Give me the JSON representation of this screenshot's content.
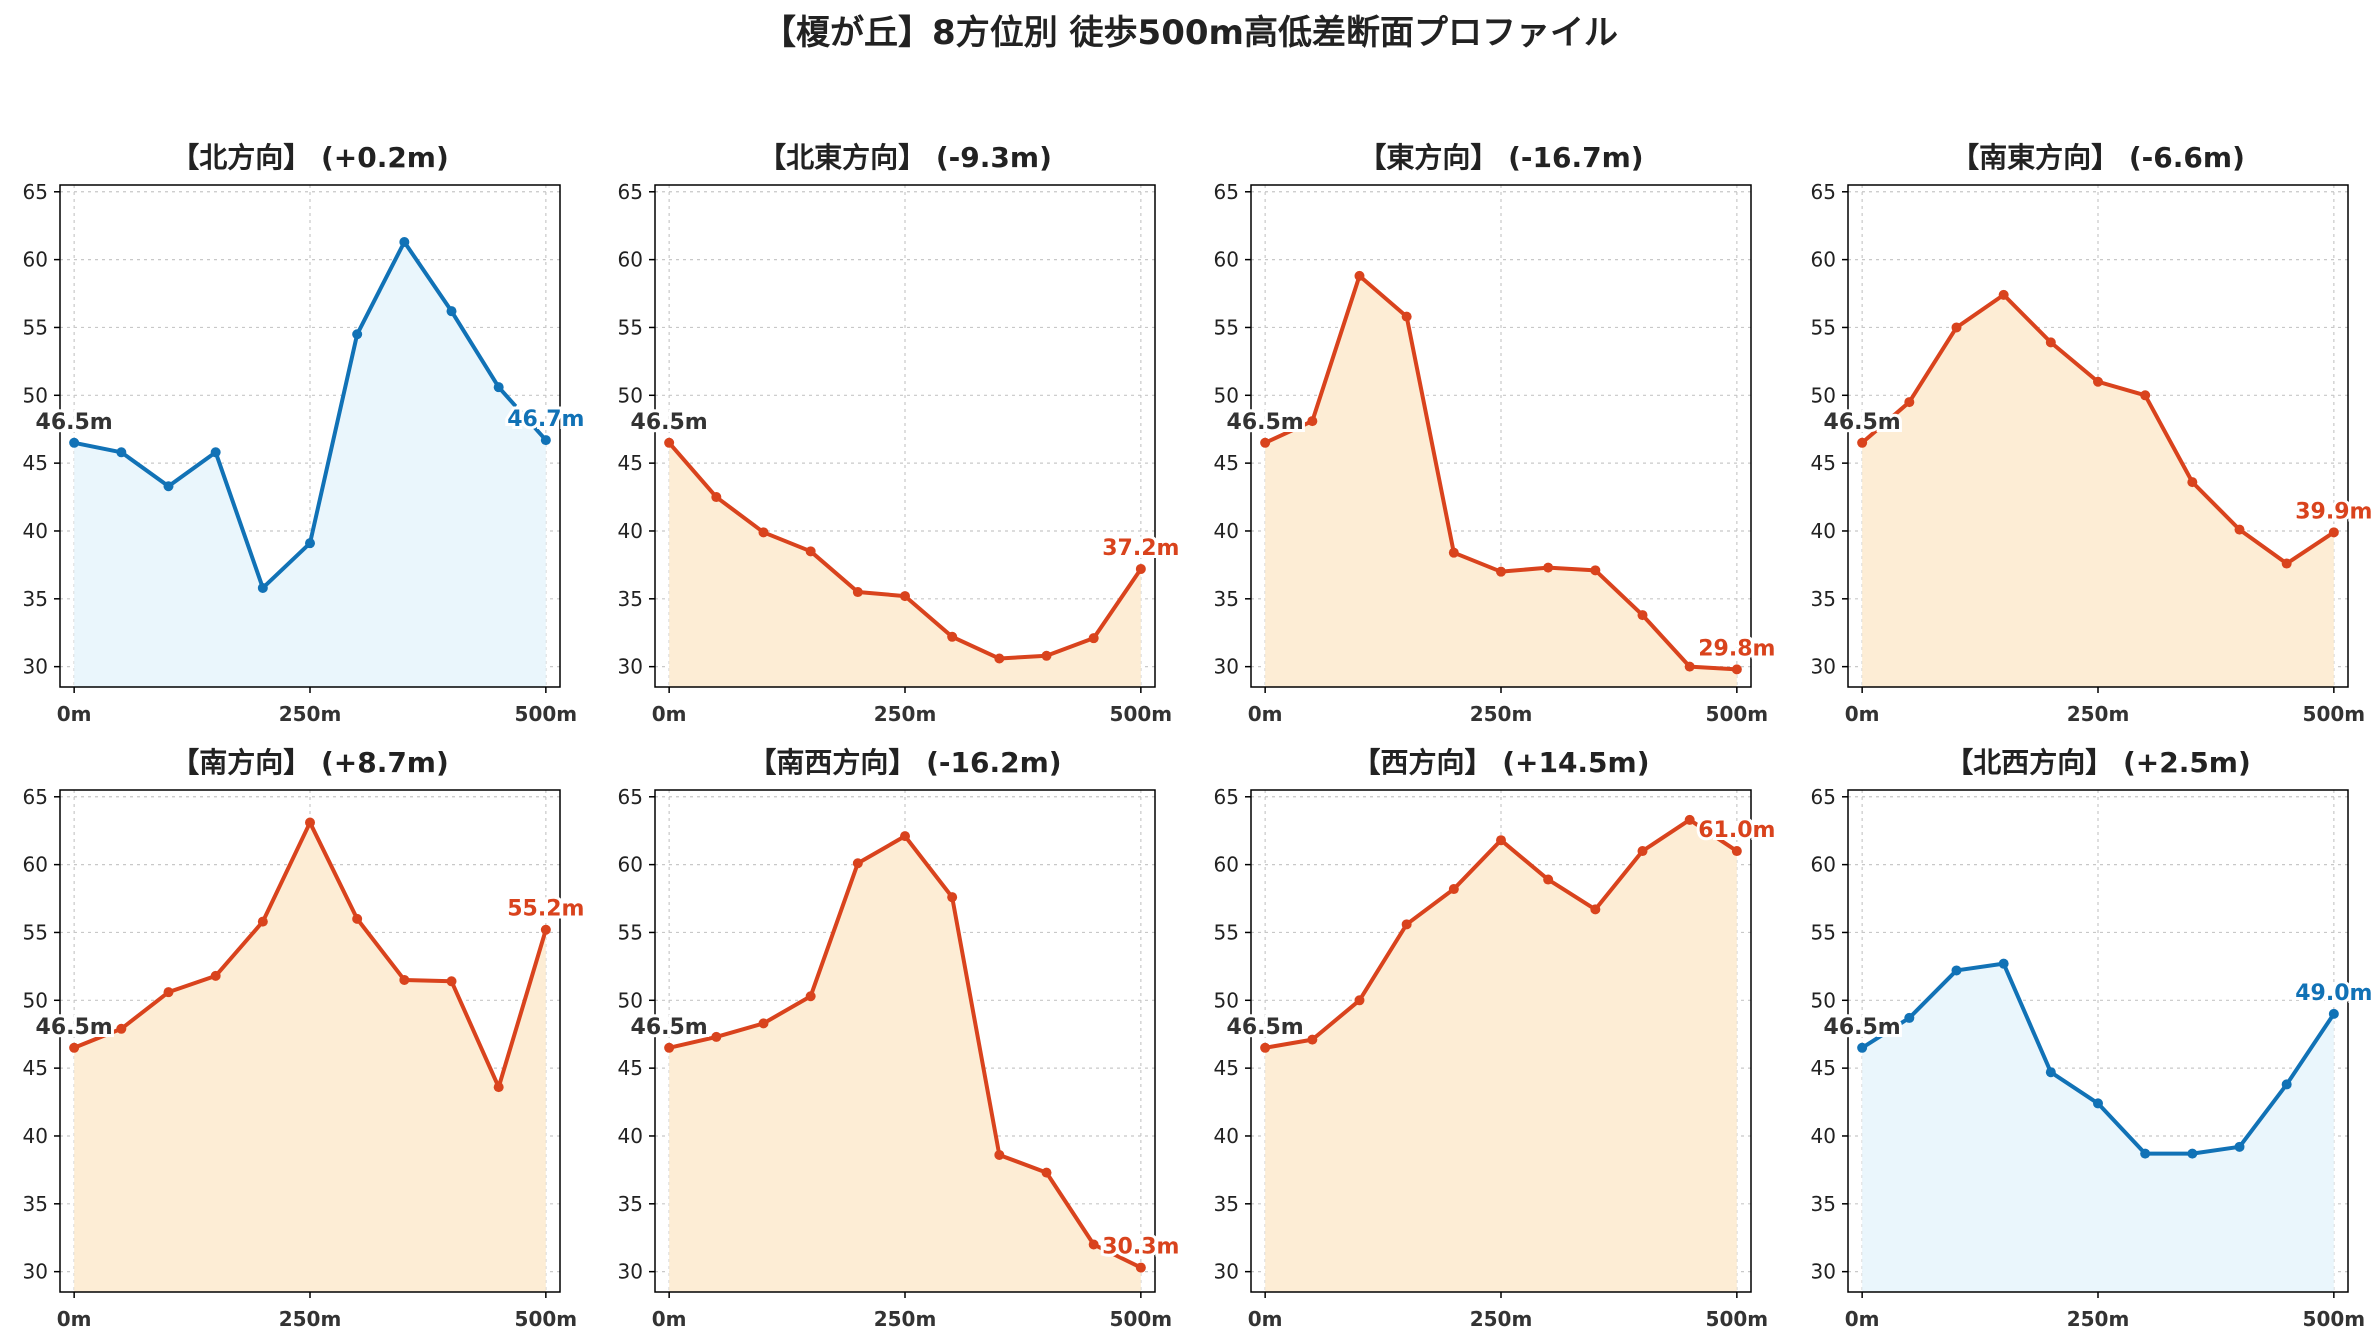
{
  "figure": {
    "title": "【榎が丘】8方位別 徒歩500m高低差断面プロファイル"
  },
  "colors": {
    "up_line": "#1172b6",
    "up_fill": "#eaf6fc",
    "down_line": "#d9431d",
    "down_fill": "#fdedd5",
    "start_label": "#333333",
    "grid": "#c8c8c8",
    "axis": "#000000"
  },
  "chart_data": [
    {
      "type": "area",
      "title": "【北方向】 (+0.2m)",
      "trend": "up",
      "x": [
        0,
        50,
        100,
        150,
        200,
        250,
        300,
        350,
        400,
        450,
        500
      ],
      "values": [
        46.5,
        45.8,
        43.3,
        45.8,
        35.8,
        39.1,
        54.5,
        61.3,
        56.2,
        50.6,
        46.7
      ],
      "xticks": [
        "0m",
        "250m",
        "500m"
      ],
      "yticks": [
        "30",
        "35",
        "40",
        "45",
        "50",
        "55",
        "60",
        "65"
      ],
      "ylim": [
        28.5,
        65.5
      ],
      "xlim": [
        -15,
        515
      ],
      "start_label": "46.5m",
      "end_label": "46.7m",
      "grid": true
    },
    {
      "type": "area",
      "title": "【北東方向】 (-9.3m)",
      "trend": "down",
      "x": [
        0,
        50,
        100,
        150,
        200,
        250,
        300,
        350,
        400,
        450,
        500
      ],
      "values": [
        46.5,
        42.5,
        39.9,
        38.5,
        35.5,
        35.2,
        32.2,
        30.6,
        30.8,
        32.1,
        37.2
      ],
      "xticks": [
        "0m",
        "250m",
        "500m"
      ],
      "yticks": [
        "30",
        "35",
        "40",
        "45",
        "50",
        "55",
        "60",
        "65"
      ],
      "ylim": [
        28.5,
        65.5
      ],
      "xlim": [
        -15,
        515
      ],
      "start_label": "46.5m",
      "end_label": "37.2m",
      "grid": true
    },
    {
      "type": "area",
      "title": "【東方向】 (-16.7m)",
      "trend": "down",
      "x": [
        0,
        50,
        100,
        150,
        200,
        250,
        300,
        350,
        400,
        450,
        500
      ],
      "values": [
        46.5,
        48.1,
        58.8,
        55.8,
        38.4,
        37.0,
        37.3,
        37.1,
        33.8,
        30.0,
        29.8
      ],
      "xticks": [
        "0m",
        "250m",
        "500m"
      ],
      "yticks": [
        "30",
        "35",
        "40",
        "45",
        "50",
        "55",
        "60",
        "65"
      ],
      "ylim": [
        28.5,
        65.5
      ],
      "xlim": [
        -15,
        515
      ],
      "start_label": "46.5m",
      "end_label": "29.8m",
      "grid": true
    },
    {
      "type": "area",
      "title": "【南東方向】 (-6.6m)",
      "trend": "down",
      "x": [
        0,
        50,
        100,
        150,
        200,
        250,
        300,
        350,
        400,
        450,
        500
      ],
      "values": [
        46.5,
        49.5,
        55.0,
        57.4,
        53.9,
        51.0,
        50.0,
        43.6,
        40.1,
        37.6,
        39.9
      ],
      "xticks": [
        "0m",
        "250m",
        "500m"
      ],
      "yticks": [
        "30",
        "35",
        "40",
        "45",
        "50",
        "55",
        "60",
        "65"
      ],
      "ylim": [
        28.5,
        65.5
      ],
      "xlim": [
        -15,
        515
      ],
      "start_label": "46.5m",
      "end_label": "39.9m",
      "grid": true
    },
    {
      "type": "area",
      "title": "【南方向】 (+8.7m)",
      "trend": "down",
      "x": [
        0,
        50,
        100,
        150,
        200,
        250,
        300,
        350,
        400,
        450,
        500
      ],
      "values": [
        46.5,
        47.9,
        50.6,
        51.8,
        55.8,
        63.1,
        56.0,
        51.5,
        51.4,
        43.6,
        55.2
      ],
      "xticks": [
        "0m",
        "250m",
        "500m"
      ],
      "yticks": [
        "30",
        "35",
        "40",
        "45",
        "50",
        "55",
        "60",
        "65"
      ],
      "ylim": [
        28.5,
        65.5
      ],
      "xlim": [
        -15,
        515
      ],
      "start_label": "46.5m",
      "end_label": "55.2m",
      "grid": true
    },
    {
      "type": "area",
      "title": "【南西方向】 (-16.2m)",
      "trend": "down",
      "x": [
        0,
        50,
        100,
        150,
        200,
        250,
        300,
        350,
        400,
        450,
        500
      ],
      "values": [
        46.5,
        47.3,
        48.3,
        50.3,
        60.1,
        62.1,
        57.6,
        38.6,
        37.3,
        32.0,
        30.3
      ],
      "xticks": [
        "0m",
        "250m",
        "500m"
      ],
      "yticks": [
        "30",
        "35",
        "40",
        "45",
        "50",
        "55",
        "60",
        "65"
      ],
      "ylim": [
        28.5,
        65.5
      ],
      "xlim": [
        -15,
        515
      ],
      "start_label": "46.5m",
      "end_label": "30.3m",
      "grid": true
    },
    {
      "type": "area",
      "title": "【西方向】 (+14.5m)",
      "trend": "down",
      "x": [
        0,
        50,
        100,
        150,
        200,
        250,
        300,
        350,
        400,
        450,
        500
      ],
      "values": [
        46.5,
        47.1,
        50.0,
        55.6,
        58.2,
        61.8,
        58.9,
        56.7,
        61.0,
        63.3,
        61.0
      ],
      "xticks": [
        "0m",
        "250m",
        "500m"
      ],
      "yticks": [
        "30",
        "35",
        "40",
        "45",
        "50",
        "55",
        "60",
        "65"
      ],
      "ylim": [
        28.5,
        65.5
      ],
      "xlim": [
        -15,
        515
      ],
      "start_label": "46.5m",
      "end_label": "61.0m",
      "grid": true
    },
    {
      "type": "area",
      "title": "【北西方向】 (+2.5m)",
      "trend": "up",
      "x": [
        0,
        50,
        100,
        150,
        200,
        250,
        300,
        350,
        400,
        450,
        500
      ],
      "values": [
        46.5,
        48.7,
        52.2,
        52.7,
        44.7,
        42.4,
        38.7,
        38.7,
        39.2,
        43.8,
        49.0
      ],
      "xticks": [
        "0m",
        "250m",
        "500m"
      ],
      "yticks": [
        "30",
        "35",
        "40",
        "45",
        "50",
        "55",
        "60",
        "65"
      ],
      "ylim": [
        28.5,
        65.5
      ],
      "xlim": [
        -15,
        515
      ],
      "start_label": "46.5m",
      "end_label": "49.0m",
      "grid": true
    }
  ]
}
